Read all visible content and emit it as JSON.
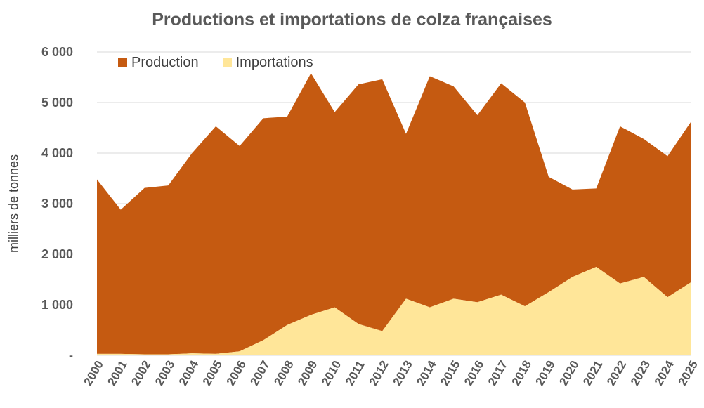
{
  "chart_data": {
    "type": "area",
    "stacked": true,
    "title": "Productions et importations de colza françaises",
    "xlabel": "",
    "ylabel": "milliers de tonnes",
    "ylim": [
      0,
      6000
    ],
    "yticks": [
      0,
      1000,
      2000,
      3000,
      4000,
      5000,
      6000
    ],
    "ytick_labels": [
      "-",
      "1 000",
      "2 000",
      "3 000",
      "4 000",
      "5 000",
      "6 000"
    ],
    "grid": true,
    "legend_position": "top-left",
    "categories": [
      "2000",
      "2001",
      "2002",
      "2003",
      "2004",
      "2005",
      "2006",
      "2007",
      "2008",
      "2009",
      "2010",
      "2011",
      "2012",
      "2013",
      "2014",
      "2015",
      "2016",
      "2017",
      "2018",
      "2019",
      "2020",
      "2021",
      "2022",
      "2023",
      "2024",
      "2025"
    ],
    "series": [
      {
        "name": "Importations",
        "color": "#FFE699",
        "values": [
          30,
          30,
          20,
          20,
          40,
          30,
          80,
          300,
          600,
          800,
          950,
          620,
          480,
          1120,
          950,
          1120,
          1050,
          1200,
          970,
          1250,
          1550,
          1750,
          1420,
          1550,
          1150,
          1450
        ]
      },
      {
        "name": "Production",
        "color": "#C55A11",
        "values": [
          3450,
          2850,
          3290,
          3340,
          3960,
          4500,
          4060,
          4390,
          4120,
          4780,
          3860,
          4740,
          4980,
          3260,
          4570,
          4200,
          3700,
          4180,
          4030,
          2280,
          1730,
          1550,
          3110,
          2730,
          2790,
          3180
        ]
      }
    ]
  }
}
